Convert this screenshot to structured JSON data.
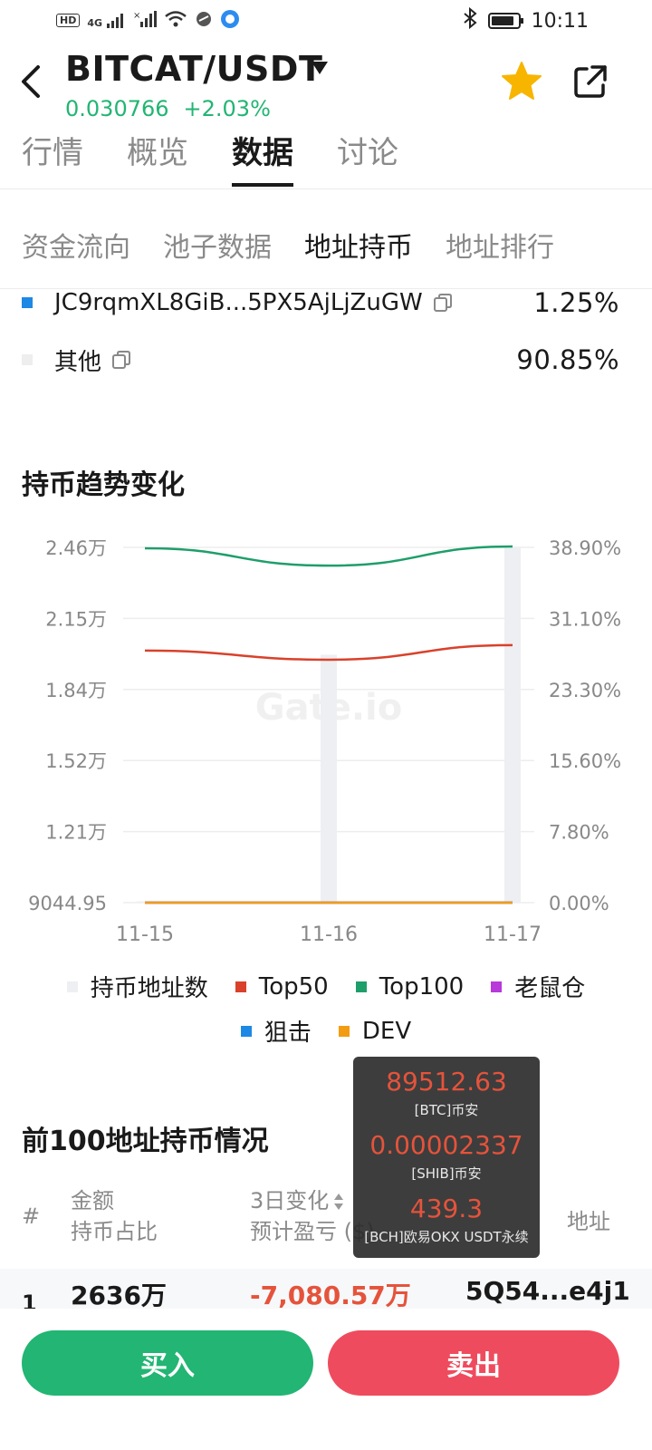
{
  "status_bar": {
    "left_icons": [
      "hd-icon",
      "signal-4g-icon",
      "signal-x-icon",
      "wifi-icon",
      "vpn-icon",
      "app-icon"
    ],
    "hd_label": "HD",
    "net_label": "4G",
    "time": "10:11"
  },
  "header": {
    "pair": "BITCAT/USDT",
    "price": "0.030766",
    "change": "+2.03%"
  },
  "main_tabs": [
    {
      "label": "行情",
      "active": false
    },
    {
      "label": "概览",
      "active": false
    },
    {
      "label": "数据",
      "active": true
    },
    {
      "label": "讨论",
      "active": false
    }
  ],
  "sub_tabs": [
    {
      "label": "资金流向",
      "active": false
    },
    {
      "label": "池子数据",
      "active": false
    },
    {
      "label": "地址持币",
      "active": true
    },
    {
      "label": "地址排行",
      "active": false
    }
  ],
  "holders": [
    {
      "address": "JC9rqmXL8GiB...5PX5AjLjZuGW",
      "pct": "1.25%",
      "color": "#1e88e5"
    },
    {
      "address": "其他",
      "pct": "90.85%",
      "color": "#eeeeee"
    }
  ],
  "trend_section": {
    "title": "持币趋势变化"
  },
  "chart_data": {
    "type": "line",
    "title": "持币趋势变化",
    "categories": [
      "11-15",
      "11-16",
      "11-17"
    ],
    "y_left_ticks": [
      "2.46万",
      "2.15万",
      "1.84万",
      "1.52万",
      "1.21万",
      "9044.95"
    ],
    "y_right_ticks": [
      "38.90%",
      "31.10%",
      "23.30%",
      "15.60%",
      "7.80%",
      "0.00%"
    ],
    "ylim_left": [
      9044.95,
      24600
    ],
    "ylim_right": [
      0,
      38.9
    ],
    "grid": true,
    "watermark": "Gate.io",
    "bars": {
      "name": "持币地址数",
      "values": [
        9100,
        19900,
        24600
      ],
      "color": "#eeeff2"
    },
    "series": [
      {
        "name": "Top50",
        "values": [
          27.6,
          26.6,
          28.2
        ],
        "color": "#d9412b"
      },
      {
        "name": "Top100",
        "values": [
          38.8,
          36.9,
          39.0
        ],
        "color": "#1e9e6a"
      },
      {
        "name": "老鼠仓",
        "values": [
          0,
          0,
          0
        ],
        "color": "#b838d9"
      },
      {
        "name": "狙击",
        "values": [
          0,
          0,
          0
        ],
        "color": "#1e88e5"
      },
      {
        "name": "DEV",
        "values": [
          0,
          0,
          0
        ],
        "color": "#f39c12"
      }
    ],
    "legend_position": "bottom"
  },
  "legend": {
    "row1": [
      {
        "name": "持币地址数",
        "color": "#eeeff2"
      },
      {
        "name": "Top50",
        "color": "#d9412b"
      },
      {
        "name": "Top100",
        "color": "#1e9e6a"
      },
      {
        "name": "老鼠仓",
        "color": "#b838d9"
      }
    ],
    "row2": [
      {
        "name": "狙击",
        "color": "#1e88e5"
      },
      {
        "name": "DEV",
        "color": "#f39c12"
      }
    ]
  },
  "tooltip": [
    {
      "price": "89512.63",
      "label": "[BTC]币安"
    },
    {
      "price": "0.00002337",
      "label": "[SHIB]币安"
    },
    {
      "price": "439.3",
      "label": "[BCH]欧易OKX USDT永续"
    }
  ],
  "top100": {
    "title": "前100地址持币情况",
    "headers": {
      "hash": "#",
      "amount": "金额",
      "share": "持币占比",
      "change": "3日变化",
      "pnl": "预计盈亏",
      "pnl_unit": "($)",
      "address": "地址"
    },
    "rows": [
      {
        "rank": "1",
        "amount": "2636万",
        "change": "-7,080.57万",
        "address": "5Q54...e4j1"
      }
    ]
  },
  "actions": {
    "buy": "买入",
    "sell": "卖出"
  }
}
